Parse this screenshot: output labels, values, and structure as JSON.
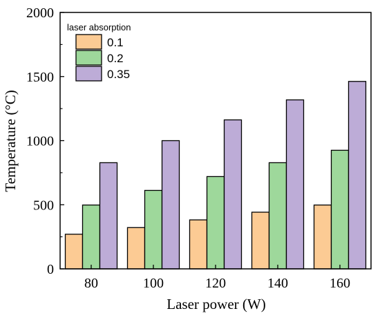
{
  "chart_data": {
    "type": "bar",
    "title": "",
    "xlabel": "Laser power (W)",
    "ylabel": "Temperature (°C)",
    "categories": [
      "80",
      "100",
      "120",
      "140",
      "160"
    ],
    "ylim": [
      0,
      2000
    ],
    "yticks": [
      "0",
      "500",
      "1000",
      "1500",
      "2000"
    ],
    "legend_title": "laser absorption",
    "legend_position": "top-left",
    "grid": false,
    "series": [
      {
        "name": "0.1",
        "color": "#FCCB94",
        "values": [
          270,
          322,
          382,
          442,
          498
        ]
      },
      {
        "name": "0.2",
        "color": "#9ED89B",
        "values": [
          498,
          612,
          720,
          828,
          925
        ]
      },
      {
        "name": "0.35",
        "color": "#BDACD7",
        "values": [
          828,
          1000,
          1162,
          1318,
          1462
        ]
      }
    ]
  }
}
